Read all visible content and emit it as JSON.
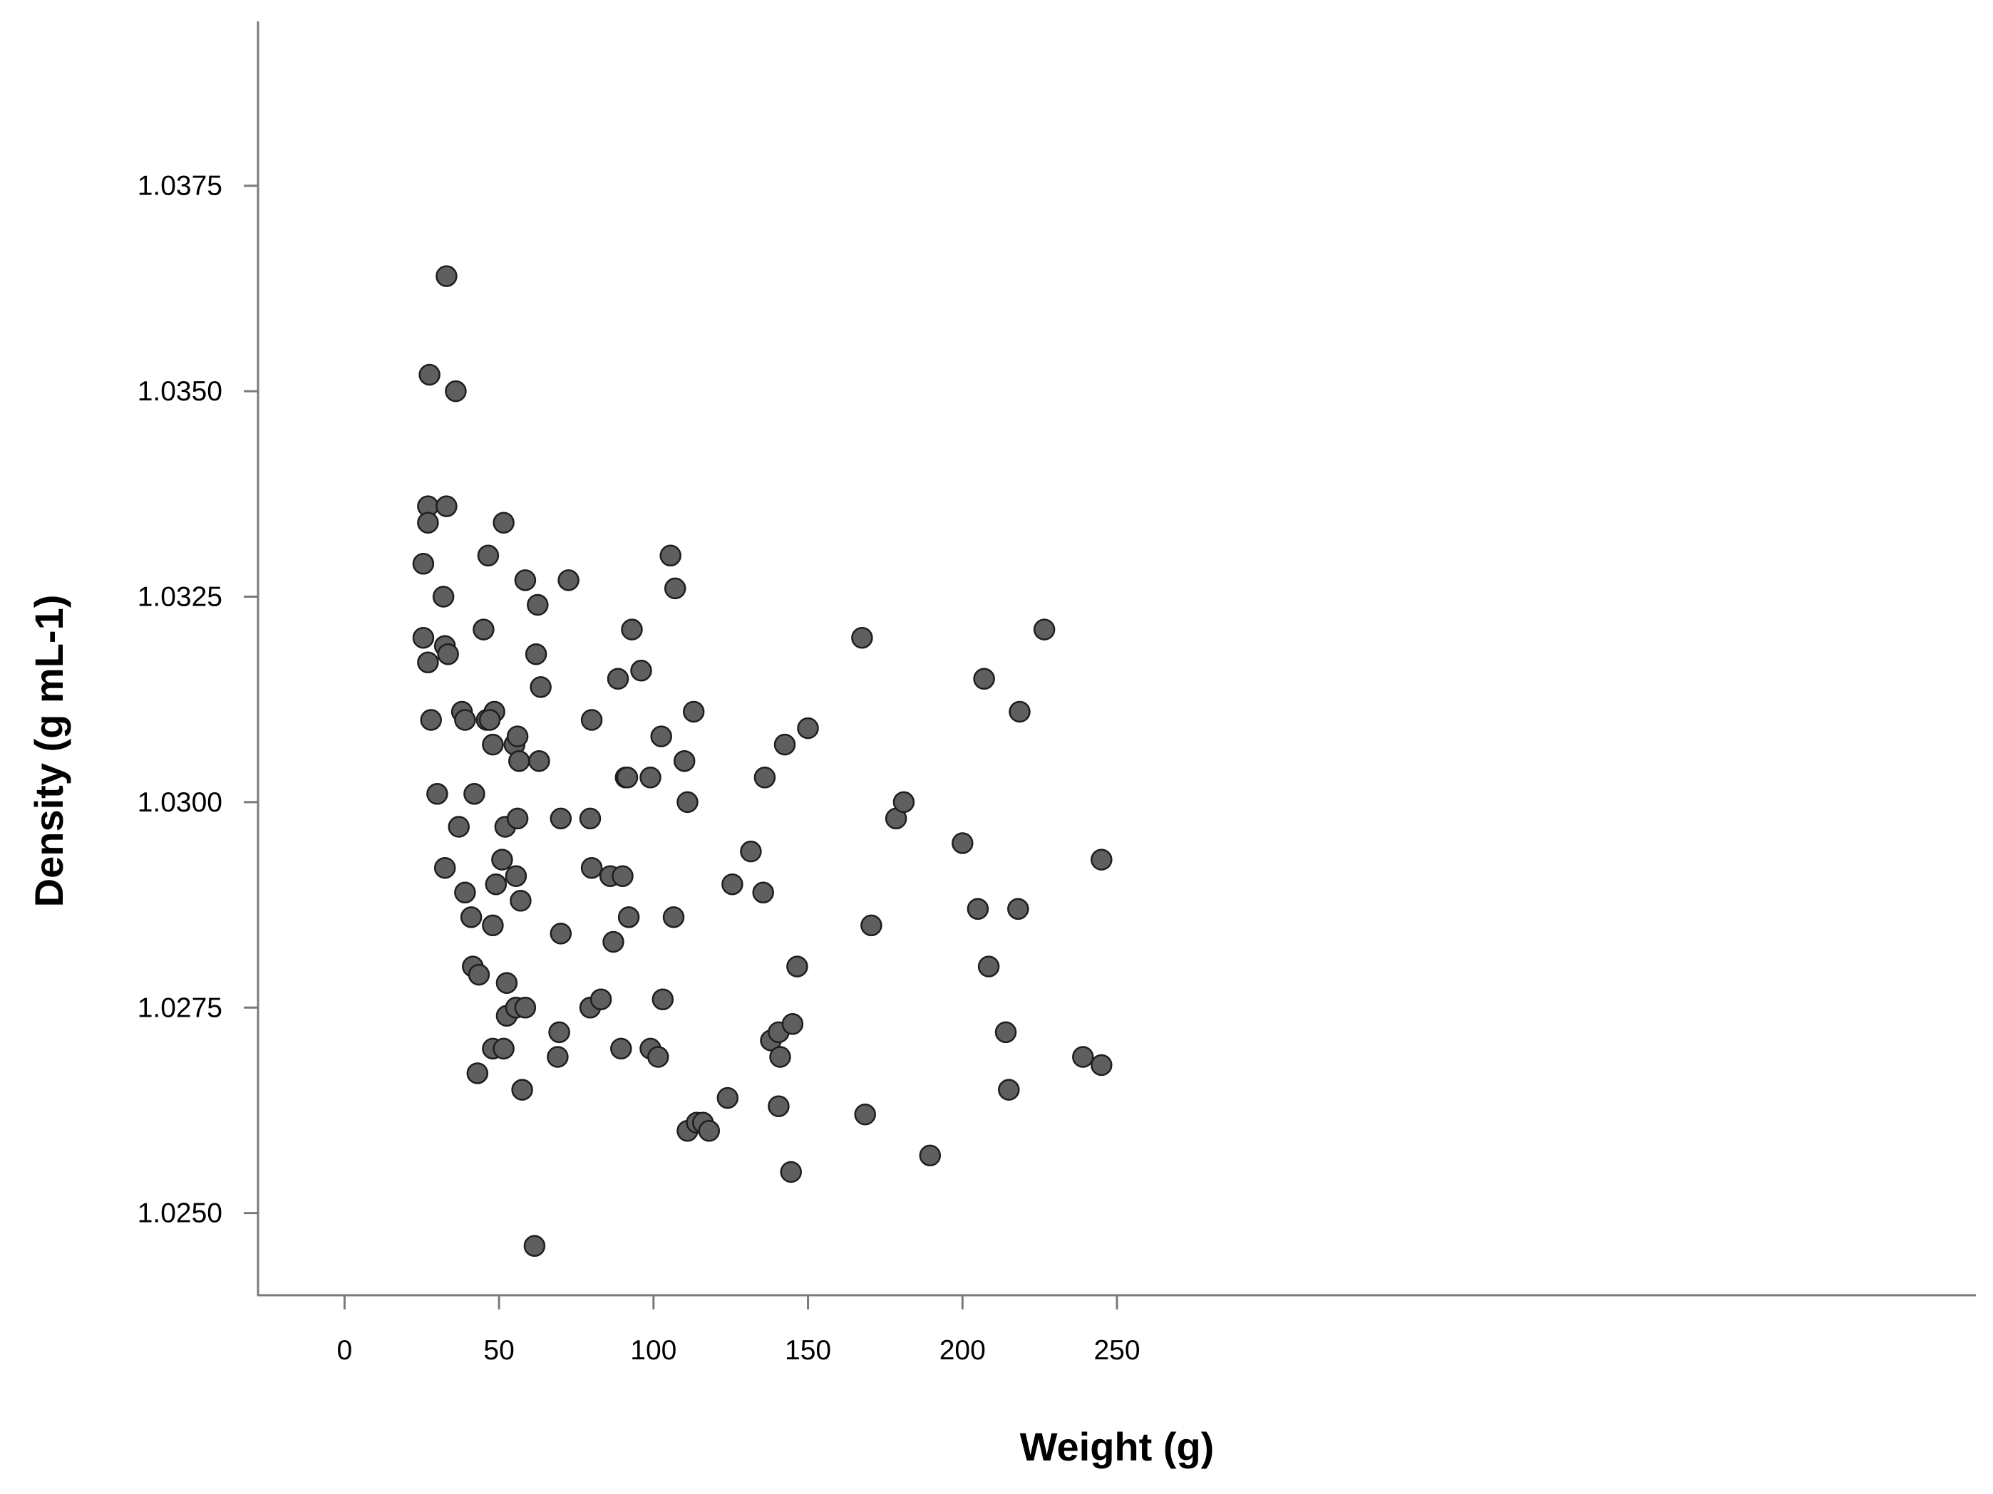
{
  "chart_data": {
    "type": "scatter",
    "title": "",
    "xlabel": "Weight (g)",
    "ylabel": "Density (g mL-1)",
    "xlim": [
      -28,
      528
    ],
    "ylim": [
      1.024,
      1.0395
    ],
    "xticks": [
      0,
      50,
      100,
      150,
      200,
      250
    ],
    "xtick_labels": [
      "0",
      "50",
      "100",
      "150",
      "200",
      "250"
    ],
    "yticks": [
      1.025,
      1.0275,
      1.03,
      1.0325,
      1.035,
      1.0375
    ],
    "ytick_labels": [
      "1.0250",
      "1.0275",
      "1.0300",
      "1.0325",
      "1.0350",
      "1.0375"
    ],
    "grid": false,
    "legend": "none",
    "marker_fill": "#5f5f5f",
    "marker_edge": "#1e1e1e",
    "axis_color": "#7a7a7a",
    "points": [
      [
        33,
        1.0364
      ],
      [
        27.5,
        1.0352
      ],
      [
        36,
        1.035
      ],
      [
        27,
        1.0336
      ],
      [
        33,
        1.0336
      ],
      [
        27,
        1.0334
      ],
      [
        25.5,
        1.0329
      ],
      [
        32,
        1.0325
      ],
      [
        25.5,
        1.032
      ],
      [
        32.5,
        1.0319
      ],
      [
        27,
        1.0317
      ],
      [
        33.5,
        1.0318
      ],
      [
        38,
        1.0311
      ],
      [
        28,
        1.031
      ],
      [
        39,
        1.031
      ],
      [
        30,
        1.0301
      ],
      [
        37,
        1.0297
      ],
      [
        32.5,
        1.0292
      ],
      [
        39,
        1.0289
      ],
      [
        41,
        1.0286
      ],
      [
        41.5,
        1.028
      ],
      [
        43.5,
        1.0279
      ],
      [
        42,
        1.0301
      ],
      [
        43,
        1.0267
      ],
      [
        45,
        1.0321
      ],
      [
        46.5,
        1.033
      ],
      [
        46,
        1.031
      ],
      [
        48.5,
        1.0311
      ],
      [
        48,
        1.0307
      ],
      [
        47,
        1.031
      ],
      [
        48,
        1.0285
      ],
      [
        49,
        1.029
      ],
      [
        48,
        1.027
      ],
      [
        51,
        1.0293
      ],
      [
        52,
        1.0297
      ],
      [
        51.5,
        1.0334
      ],
      [
        52.5,
        1.0278
      ],
      [
        52.5,
        1.0274
      ],
      [
        51.5,
        1.027
      ],
      [
        55,
        1.0307
      ],
      [
        56,
        1.0308
      ],
      [
        56.5,
        1.0305
      ],
      [
        55.5,
        1.0291
      ],
      [
        56,
        1.0298
      ],
      [
        57,
        1.0288
      ],
      [
        55.5,
        1.0275
      ],
      [
        58.5,
        1.0275
      ],
      [
        57.5,
        1.0265
      ],
      [
        58.5,
        1.0327
      ],
      [
        62.5,
        1.0324
      ],
      [
        62,
        1.0318
      ],
      [
        63.5,
        1.0314
      ],
      [
        63,
        1.0305
      ],
      [
        61.5,
        1.0246
      ],
      [
        70,
        1.0298
      ],
      [
        70,
        1.0284
      ],
      [
        69.5,
        1.0272
      ],
      [
        69,
        1.0269
      ],
      [
        72.5,
        1.0327
      ],
      [
        80,
        1.031
      ],
      [
        79.5,
        1.0298
      ],
      [
        80,
        1.0292
      ],
      [
        79.5,
        1.0275
      ],
      [
        83,
        1.0276
      ],
      [
        86,
        1.0291
      ],
      [
        87,
        1.0283
      ],
      [
        88.5,
        1.0315
      ],
      [
        90,
        1.0291
      ],
      [
        89.5,
        1.027
      ],
      [
        91,
        1.0303
      ],
      [
        91.5,
        1.0303
      ],
      [
        92,
        1.0286
      ],
      [
        93,
        1.0321
      ],
      [
        96,
        1.0316
      ],
      [
        99,
        1.0303
      ],
      [
        99,
        1.027
      ],
      [
        101.5,
        1.0269
      ],
      [
        102.5,
        1.0308
      ],
      [
        103,
        1.0276
      ],
      [
        105.5,
        1.033
      ],
      [
        107,
        1.0326
      ],
      [
        106.5,
        1.0286
      ],
      [
        110,
        1.0305
      ],
      [
        111,
        1.03
      ],
      [
        113,
        1.0311
      ],
      [
        111,
        1.026
      ],
      [
        114,
        1.0261
      ],
      [
        116,
        1.0261
      ],
      [
        118,
        1.026
      ],
      [
        124,
        1.0264
      ],
      [
        125.5,
        1.029
      ],
      [
        131.5,
        1.0294
      ],
      [
        136,
        1.0303
      ],
      [
        135.5,
        1.0289
      ],
      [
        138,
        1.0271
      ],
      [
        140.5,
        1.0272
      ],
      [
        141,
        1.0269
      ],
      [
        140.5,
        1.0263
      ],
      [
        142.5,
        1.0307
      ],
      [
        145,
        1.0273
      ],
      [
        146.5,
        1.028
      ],
      [
        144.5,
        1.0255
      ],
      [
        150,
        1.0309
      ],
      [
        167.5,
        1.032
      ],
      [
        168.5,
        1.0262
      ],
      [
        170.5,
        1.0285
      ],
      [
        178.5,
        1.0298
      ],
      [
        181,
        1.03
      ],
      [
        189.5,
        1.0257
      ],
      [
        200,
        1.0295
      ],
      [
        205,
        1.0287
      ],
      [
        207,
        1.0315
      ],
      [
        208.5,
        1.028
      ],
      [
        214,
        1.0272
      ],
      [
        215,
        1.0265
      ],
      [
        218,
        1.0287
      ],
      [
        218.5,
        1.0311
      ],
      [
        226.5,
        1.0321
      ],
      [
        239,
        1.0269
      ],
      [
        245,
        1.0268
      ],
      [
        245,
        1.0293
      ]
    ]
  }
}
